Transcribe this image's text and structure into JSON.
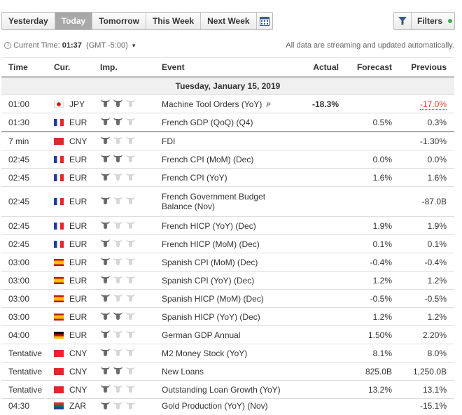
{
  "tabs": [
    "Yesterday",
    "Today",
    "Tomorrow",
    "This Week",
    "Next Week"
  ],
  "active_tab": "Today",
  "filters_label": "Filters",
  "time_bar": {
    "label": "Current Time:",
    "time": "01:37",
    "tz": "(GMT -5:00)",
    "notice": "All data are streaming and updated automatically."
  },
  "columns": {
    "time": "Time",
    "cur": "Cur.",
    "imp": "Imp.",
    "event": "Event",
    "actual": "Actual",
    "forecast": "Forecast",
    "previous": "Previous"
  },
  "day_header": "Tuesday, January 15, 2019",
  "rows": [
    {
      "time": "01:00",
      "flag": "jp",
      "cur": "JPY",
      "imp": 2,
      "event": "Machine Tool Orders (YoY)",
      "prelim": "P",
      "actual": "-18.3%",
      "forecast": "",
      "previous": "-17.0%",
      "previous_red": true
    },
    {
      "time": "01:30",
      "flag": "fr",
      "cur": "EUR",
      "imp": 2,
      "event": "French GDP (QoQ) (Q4)",
      "actual": "",
      "forecast": "0.5%",
      "previous": "0.3%"
    },
    {
      "time": "7 min",
      "flag": "cn",
      "cur": "CNY",
      "imp": 1,
      "event": "FDI",
      "actual": "",
      "forecast": "",
      "previous": "-1.30%"
    },
    {
      "time": "02:45",
      "flag": "fr",
      "cur": "EUR",
      "imp": 2,
      "event": "French CPI (MoM) (Dec)",
      "actual": "",
      "forecast": "0.0%",
      "previous": "0.0%"
    },
    {
      "time": "02:45",
      "flag": "fr",
      "cur": "EUR",
      "imp": 1,
      "event": "French CPI (YoY)",
      "actual": "",
      "forecast": "1.6%",
      "previous": "1.6%"
    },
    {
      "time": "02:45",
      "flag": "fr",
      "cur": "EUR",
      "imp": 1,
      "event": "French Government Budget Balance (Nov)",
      "actual": "",
      "forecast": "",
      "previous": "-87.0B"
    },
    {
      "time": "02:45",
      "flag": "fr",
      "cur": "EUR",
      "imp": 1,
      "event": "French HICP (YoY) (Dec)",
      "actual": "",
      "forecast": "1.9%",
      "previous": "1.9%"
    },
    {
      "time": "02:45",
      "flag": "fr",
      "cur": "EUR",
      "imp": 1,
      "event": "French HICP (MoM) (Dec)",
      "actual": "",
      "forecast": "0.1%",
      "previous": "0.1%"
    },
    {
      "time": "03:00",
      "flag": "es",
      "cur": "EUR",
      "imp": 1,
      "event": "Spanish CPI (MoM) (Dec)",
      "actual": "",
      "forecast": "-0.4%",
      "previous": "-0.4%"
    },
    {
      "time": "03:00",
      "flag": "es",
      "cur": "EUR",
      "imp": 1,
      "event": "Spanish CPI (YoY) (Dec)",
      "actual": "",
      "forecast": "1.2%",
      "previous": "1.2%"
    },
    {
      "time": "03:00",
      "flag": "es",
      "cur": "EUR",
      "imp": 1,
      "event": "Spanish HICP (MoM) (Dec)",
      "actual": "",
      "forecast": "-0.5%",
      "previous": "-0.5%"
    },
    {
      "time": "03:00",
      "flag": "es",
      "cur": "EUR",
      "imp": 2,
      "event": "Spanish HICP (YoY) (Dec)",
      "actual": "",
      "forecast": "1.2%",
      "previous": "1.2%"
    },
    {
      "time": "04:00",
      "flag": "de",
      "cur": "EUR",
      "imp": 1,
      "event": "German GDP Annual",
      "actual": "",
      "forecast": "1.50%",
      "previous": "2.20%"
    },
    {
      "time": "Tentative",
      "flag": "cn",
      "cur": "CNY",
      "imp": 1,
      "event": "M2 Money Stock (YoY)",
      "actual": "",
      "forecast": "8.1%",
      "previous": "8.0%"
    },
    {
      "time": "Tentative",
      "flag": "cn",
      "cur": "CNY",
      "imp": 2,
      "event": "New Loans",
      "actual": "",
      "forecast": "825.0B",
      "previous": "1,250.0B"
    },
    {
      "time": "Tentative",
      "flag": "cn",
      "cur": "CNY",
      "imp": 1,
      "event": "Outstanding Loan Growth (YoY)",
      "actual": "",
      "forecast": "13.2%",
      "previous": "13.1%"
    },
    {
      "time": "04:30",
      "flag": "za",
      "cur": "ZAR",
      "imp": 1,
      "event": "Gold Production (YoY) (Nov)",
      "actual": "",
      "forecast": "",
      "previous": "-15.1%"
    }
  ],
  "colors": {
    "bull_on": "#6b6b6b",
    "bull_off": "#d6d6d6",
    "negative": "#e13b3b",
    "active_tab_bg": "#a8a8a8",
    "live_dot": "#41b14d"
  }
}
